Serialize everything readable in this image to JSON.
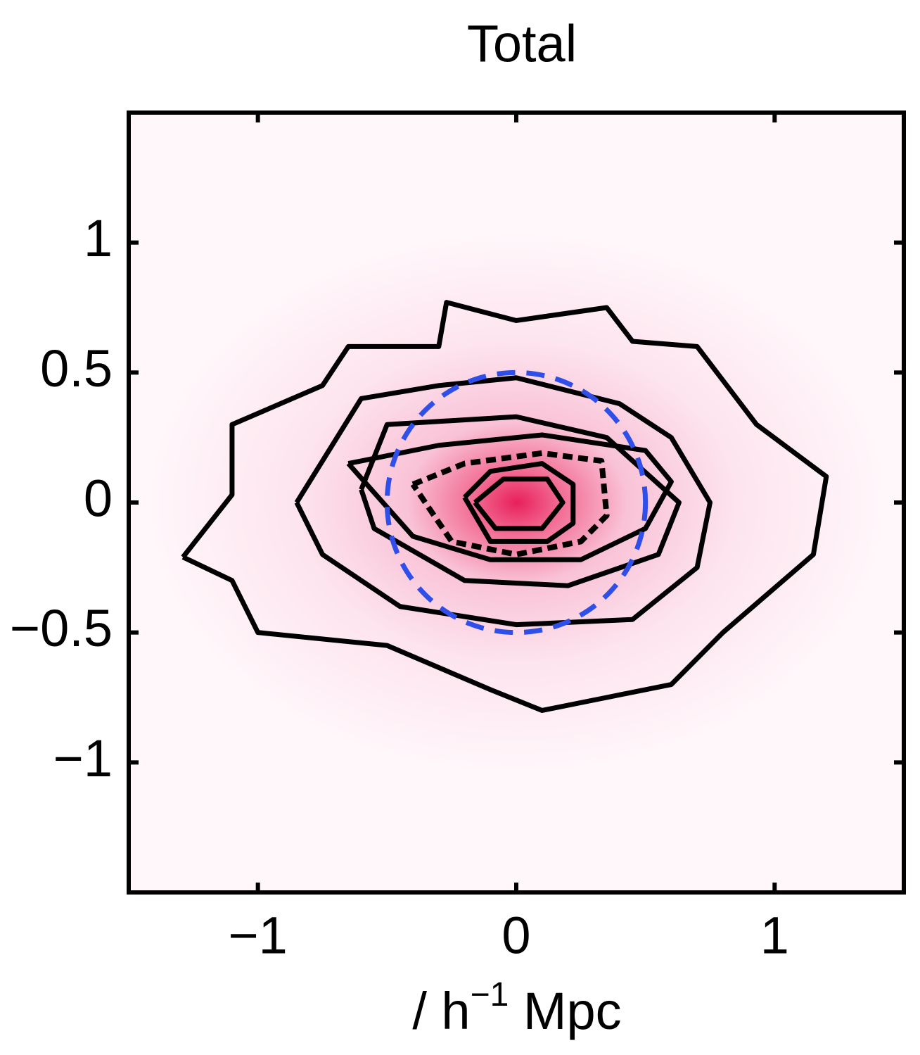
{
  "chart_data": {
    "type": "contour",
    "title": "Total",
    "xlabel": {
      "text": "/ h",
      "sup": "−1",
      "after": " Mpc"
    },
    "xlim": [
      -1.5,
      1.5
    ],
    "ylim": [
      -1.5,
      1.5
    ],
    "xticks": [
      {
        "value": -1,
        "label": "−1"
      },
      0,
      1
    ],
    "yticks": [
      {
        "value": -1,
        "label": "−1"
      },
      {
        "value": -0.5,
        "label": "−0.5"
      },
      0,
      0.5,
      1
    ],
    "line_color": "#000000",
    "contours": [
      {
        "dashed": false,
        "x": [
          -1.29,
          -1.1,
          -1.1,
          -0.75,
          -0.65,
          -0.3,
          -0.27,
          0,
          0.35,
          0.45,
          0.7,
          0.93,
          1.2,
          1.15,
          0.8,
          0.6,
          0.35,
          0.1,
          -0.1,
          -0.5,
          -1.0,
          -1.1,
          -1.29
        ],
        "y": [
          -0.21,
          0.03,
          0.3,
          0.45,
          0.6,
          0.6,
          0.77,
          0.7,
          0.75,
          0.62,
          0.6,
          0.3,
          0.1,
          -0.2,
          -0.5,
          -0.7,
          -0.75,
          -0.8,
          -0.72,
          -0.55,
          -0.5,
          -0.3,
          -0.21
        ]
      },
      {
        "dashed": false,
        "x": [
          -0.85,
          -0.6,
          -0.3,
          0,
          0.4,
          0.6,
          0.75,
          0.7,
          0.45,
          0,
          -0.45,
          -0.75,
          -0.85
        ],
        "y": [
          0,
          0.4,
          0.45,
          0.48,
          0.38,
          0.25,
          0,
          -0.25,
          -0.45,
          -0.47,
          -0.4,
          -0.2,
          0
        ]
      },
      {
        "dashed": false,
        "x": [
          -0.6,
          -0.5,
          0,
          0.35,
          0.63,
          0.55,
          0.2,
          -0.2,
          -0.55,
          -0.6
        ],
        "y": [
          0.05,
          0.3,
          0.33,
          0.25,
          0,
          -0.2,
          -0.32,
          -0.3,
          -0.1,
          0.05
        ]
      },
      {
        "dashed": false,
        "x": [
          -0.65,
          -0.3,
          0.1,
          0.5,
          0.6,
          0.5,
          0.25,
          -0.1,
          -0.4,
          -0.65
        ],
        "y": [
          0.15,
          0.22,
          0.26,
          0.2,
          0.08,
          -0.1,
          -0.22,
          -0.22,
          -0.13,
          0.15
        ]
      },
      {
        "dashed": true,
        "x": [
          -0.4,
          -0.2,
          0.1,
          0.33,
          0.35,
          0.25,
          0,
          -0.25,
          -0.4
        ],
        "y": [
          0.07,
          0.15,
          0.19,
          0.16,
          -0.05,
          -0.15,
          -0.2,
          -0.15,
          0.07
        ]
      },
      {
        "dashed": false,
        "x": [
          -0.2,
          -0.1,
          0.1,
          0.22,
          0.22,
          0.12,
          -0.1,
          -0.2
        ],
        "y": [
          0.02,
          0.12,
          0.15,
          0.07,
          -0.08,
          -0.15,
          -0.15,
          0.02
        ]
      },
      {
        "dashed": false,
        "x": [
          -0.16,
          -0.05,
          0.12,
          0.18,
          0.1,
          -0.08,
          -0.16
        ],
        "y": [
          0,
          0.09,
          0.09,
          0,
          -0.1,
          -0.1,
          0
        ]
      }
    ],
    "circle": {
      "center": [
        0,
        0
      ],
      "radius": 0.5,
      "color": "#2f4fe8"
    }
  }
}
